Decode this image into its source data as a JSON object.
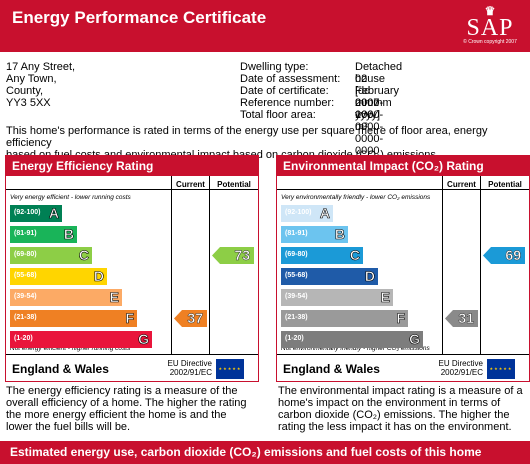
{
  "header": {
    "title": "Energy Performance Certificate",
    "logo_text": "SAP",
    "logo_copyright": "© Crown copyright 2007",
    "crown_icon": "crown-icon"
  },
  "address": [
    "17 Any Street,",
    "Any Town,",
    "County,",
    "YY3 5XX"
  ],
  "details": [
    {
      "label": "Dwelling type:",
      "value": "Detached house"
    },
    {
      "label": "Date of assessment:",
      "value": "02 February 2007"
    },
    {
      "label": "Date of certificate:",
      "value": "[dd mmmm yyyy]"
    },
    {
      "label": "Reference number:",
      "value": "0000-0000-0000-0000-0000"
    },
    {
      "label": "Total floor area:",
      "value": "166 m²"
    }
  ],
  "intro": [
    "This home's performance is rated in terms of the energy use per square metre of floor area, energy efficiency",
    "based on fuel costs and environmental impact based on carbon dioxide (CO₂) emissions."
  ],
  "efficiency": {
    "title": "Energy Efficiency Rating",
    "col_current": "Current",
    "col_potential": "Potential",
    "top_note": "Very energy efficient - lower running costs",
    "bottom_note": "Not energy efficient - higher running costs",
    "bands": [
      {
        "range": "(92-100)",
        "letter": "A",
        "color": "#008054"
      },
      {
        "range": "(81-91)",
        "letter": "B",
        "color": "#19b459"
      },
      {
        "range": "(69-80)",
        "letter": "C",
        "color": "#8dce46"
      },
      {
        "range": "(55-68)",
        "letter": "D",
        "color": "#ffd500"
      },
      {
        "range": "(39-54)",
        "letter": "E",
        "color": "#fcaa65"
      },
      {
        "range": "(21-38)",
        "letter": "F",
        "color": "#ef8023"
      },
      {
        "range": "(1-20)",
        "letter": "G",
        "color": "#e9153b"
      }
    ],
    "current": {
      "value": "37",
      "band_index": 5,
      "color": "#ef8023"
    },
    "potential": {
      "value": "73",
      "band_index": 2,
      "color": "#8dce46"
    },
    "footer": "England & Wales",
    "directive": [
      "EU Directive",
      "2002/91/EC"
    ],
    "description": [
      "The energy efficiency rating is a measure of the",
      "overall efficiency of a home. The higher the rating",
      "the more energy efficient the home is and the",
      "lower the fuel bills will be."
    ]
  },
  "environment": {
    "title": "Environmental Impact (CO₂) Rating",
    "col_current": "Current",
    "col_potential": "Potential",
    "top_note": "Very environmentally friendly - lower CO₂ emissions",
    "bottom_note": "Not environmentally friendly - higher CO₂ emissions",
    "bands": [
      {
        "range": "(92-100)",
        "letter": "A",
        "color": "#cfe6f7"
      },
      {
        "range": "(81-91)",
        "letter": "B",
        "color": "#6cc4ef"
      },
      {
        "range": "(69-80)",
        "letter": "C",
        "color": "#1b9ad7"
      },
      {
        "range": "(55-68)",
        "letter": "D",
        "color": "#1f5ba8"
      },
      {
        "range": "(39-54)",
        "letter": "E",
        "color": "#b6b6b6"
      },
      {
        "range": "(21-38)",
        "letter": "F",
        "color": "#9a9a9a"
      },
      {
        "range": "(1-20)",
        "letter": "G",
        "color": "#7d7d7d"
      }
    ],
    "current": {
      "value": "31",
      "band_index": 5,
      "color": "#8a8a8a"
    },
    "potential": {
      "value": "69",
      "band_index": 2,
      "color": "#1b9ad7"
    },
    "footer": "England & Wales",
    "directive": [
      "EU Directive",
      "2002/91/EC"
    ],
    "description": [
      "The environmental impact rating is a measure of a",
      "home's impact on the environment in terms of",
      "carbon dioxide (CO₂) emissions. The higher the",
      "rating the less impact it has on the environment."
    ]
  },
  "bottom_band": "Estimated energy use, carbon dioxide (CO₂) emissions and fuel costs of this home"
}
